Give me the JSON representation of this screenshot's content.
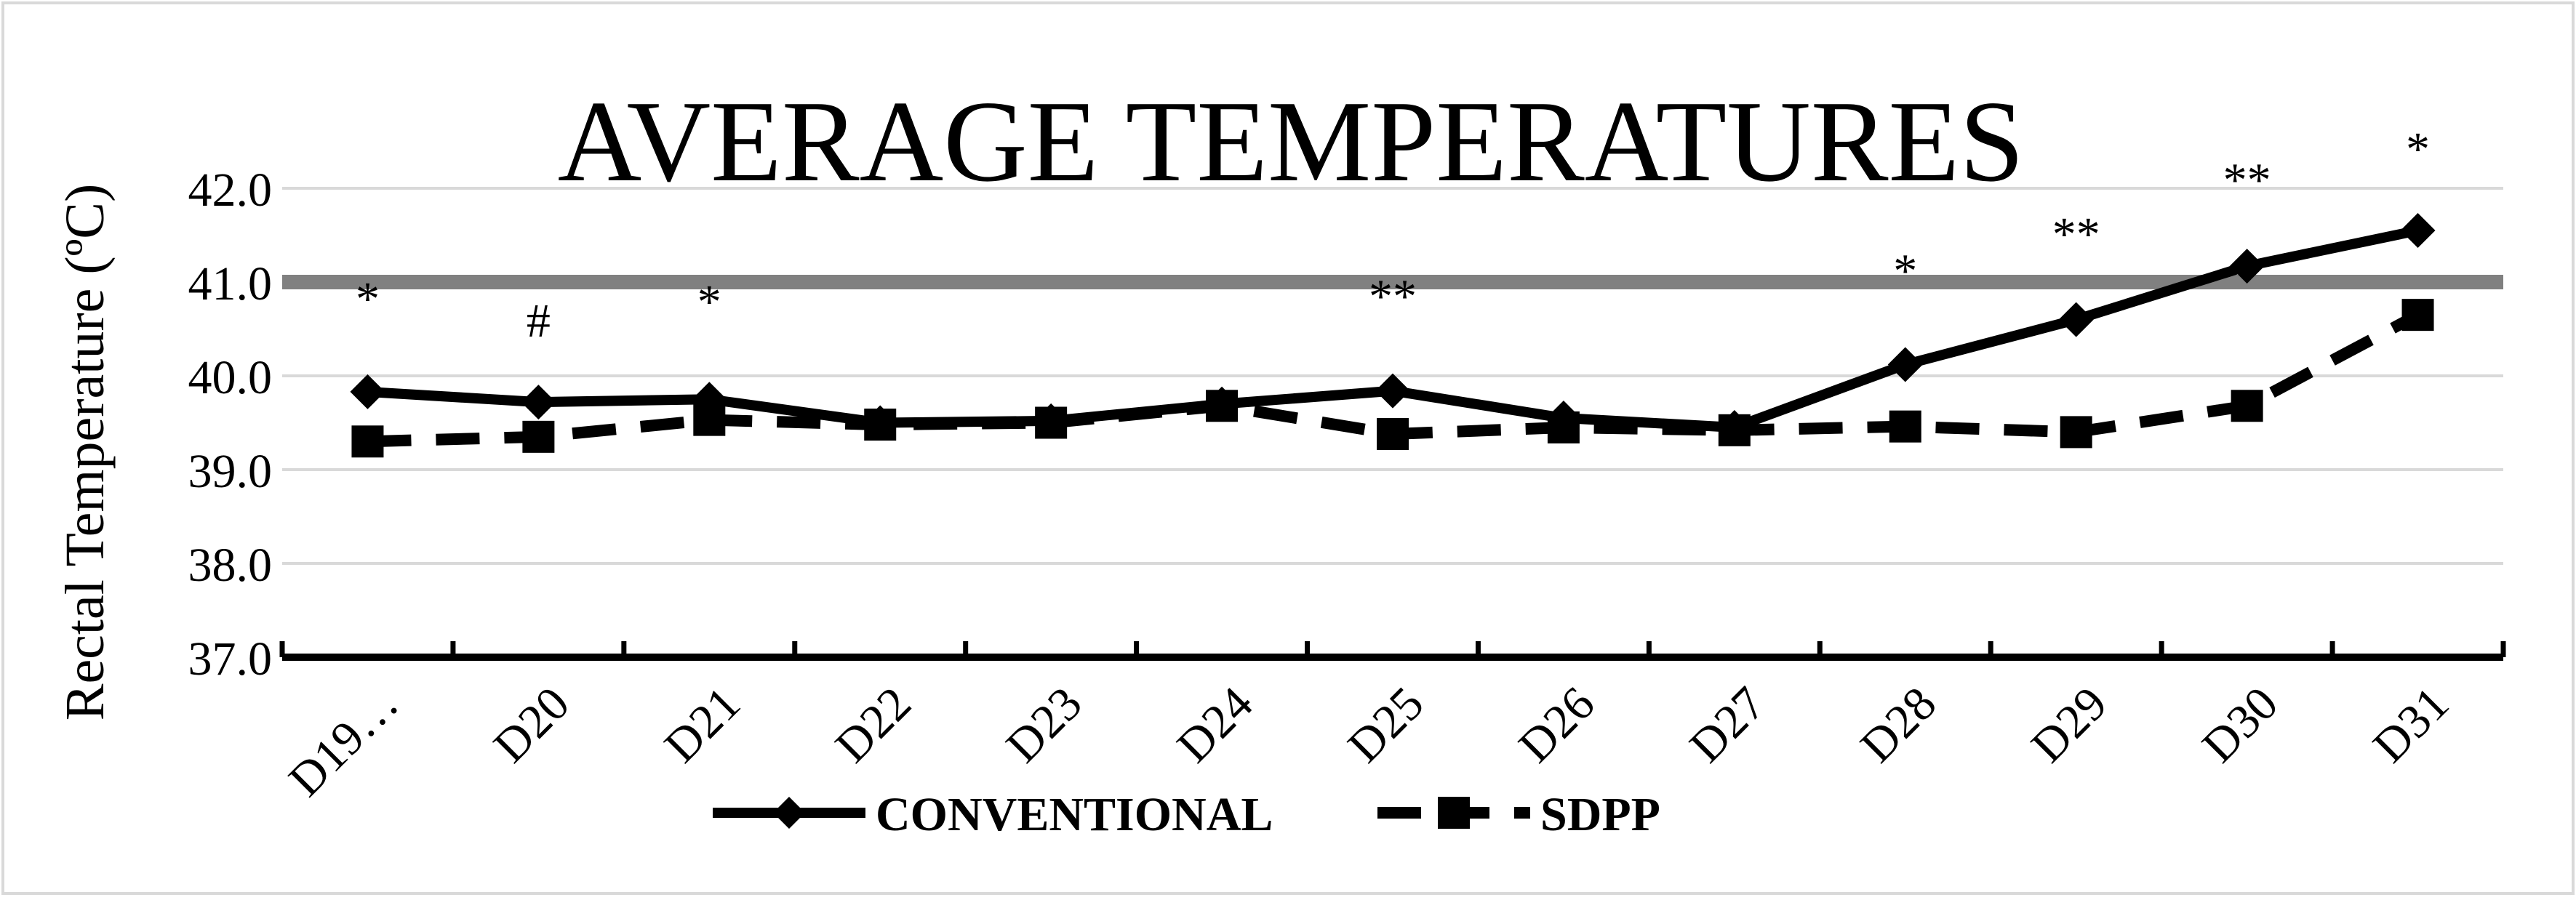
{
  "chart_data": {
    "type": "line",
    "title": "AVERAGE TEMPERATURES",
    "xlabel": "",
    "ylabel": "Rectal Temperature (ºC)",
    "ylim": [
      37.0,
      42.0
    ],
    "yticks": [
      "37.0",
      "38.0",
      "39.0",
      "40.0",
      "41.0",
      "42.0"
    ],
    "grid": true,
    "legend_position": "bottom",
    "categories": [
      "D19…",
      "D20",
      "D21",
      "D22",
      "D23",
      "D24",
      "D25",
      "D26",
      "D27",
      "D28",
      "D29",
      "D30",
      "D31"
    ],
    "series": [
      {
        "name": "CONVENTIONAL",
        "style": "solid",
        "marker": "diamond",
        "color": "#000000",
        "values": [
          39.83,
          39.72,
          39.75,
          39.5,
          39.52,
          39.7,
          39.84,
          39.55,
          39.45,
          40.12,
          40.6,
          41.17,
          41.55
        ]
      },
      {
        "name": "SDPP",
        "style": "dashed",
        "marker": "square",
        "color": "#000000",
        "values": [
          39.3,
          39.35,
          39.53,
          39.48,
          39.5,
          39.68,
          39.38,
          39.45,
          39.42,
          39.46,
          39.4,
          39.68,
          40.65
        ]
      }
    ],
    "reference_line": {
      "value": 41.0,
      "color": "#808080"
    },
    "annotations": [
      {
        "category": "D19…",
        "text": "*",
        "y": 40.65
      },
      {
        "category": "D20",
        "text": "#",
        "y": 40.42
      },
      {
        "category": "D21",
        "text": "*",
        "y": 40.62
      },
      {
        "category": "D25",
        "text": "**",
        "y": 40.68
      },
      {
        "category": "D28",
        "text": "*",
        "y": 40.95
      },
      {
        "category": "D29",
        "text": "**",
        "y": 41.34
      },
      {
        "category": "D30",
        "text": "**",
        "y": 41.92
      },
      {
        "category": "D31",
        "text": "*",
        "y": 42.25
      }
    ]
  }
}
